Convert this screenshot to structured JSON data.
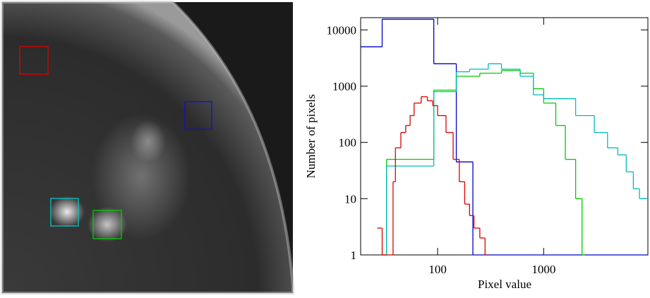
{
  "chart_data": {
    "type": "histogram",
    "xlabel": "Pixel value",
    "ylabel": "Number of pixels",
    "xscale": "log",
    "yscale": "log",
    "xlim": [
      18.8,
      9600
    ],
    "ylim": [
      1,
      16500
    ],
    "xticks": [
      100,
      1000
    ],
    "yticks": [
      1,
      10,
      100,
      1000,
      10000
    ],
    "series": [
      {
        "color": "#0000cc",
        "bins": [
          18.8,
          30,
          92,
          150,
          215,
          9600
        ],
        "values": [
          5000,
          15500,
          2500,
          45,
          1
        ]
      },
      {
        "color": "#00cc00",
        "bins": [
          30,
          33,
          92,
          150,
          250,
          400,
          600,
          800,
          1000,
          1300,
          1600,
          2000,
          2300,
          2450
        ],
        "values": [
          1,
          50,
          850,
          1500,
          1700,
          1900,
          1700,
          900,
          500,
          200,
          50,
          10,
          1
        ]
      },
      {
        "color": "#00bbbb",
        "bins": [
          30,
          33,
          92,
          150,
          200,
          300,
          400,
          600,
          800,
          1000,
          1500,
          2000,
          3000,
          4000,
          5000,
          6000,
          7000,
          8000,
          9600
        ],
        "values": [
          1,
          38,
          800,
          1800,
          2000,
          2500,
          2000,
          1500,
          700,
          600,
          600,
          300,
          150,
          80,
          60,
          30,
          15,
          10
        ]
      },
      {
        "color": "#dd0000",
        "bins": [
          27,
          30,
          38,
          40,
          45,
          50,
          55,
          60,
          70,
          80,
          90,
          100,
          120,
          140,
          160,
          180,
          200,
          220,
          250,
          280,
          300
        ],
        "values": [
          3,
          1,
          20,
          80,
          150,
          200,
          300,
          500,
          650,
          550,
          450,
          300,
          150,
          50,
          20,
          8,
          5,
          3,
          2,
          1
        ]
      }
    ]
  }
}
